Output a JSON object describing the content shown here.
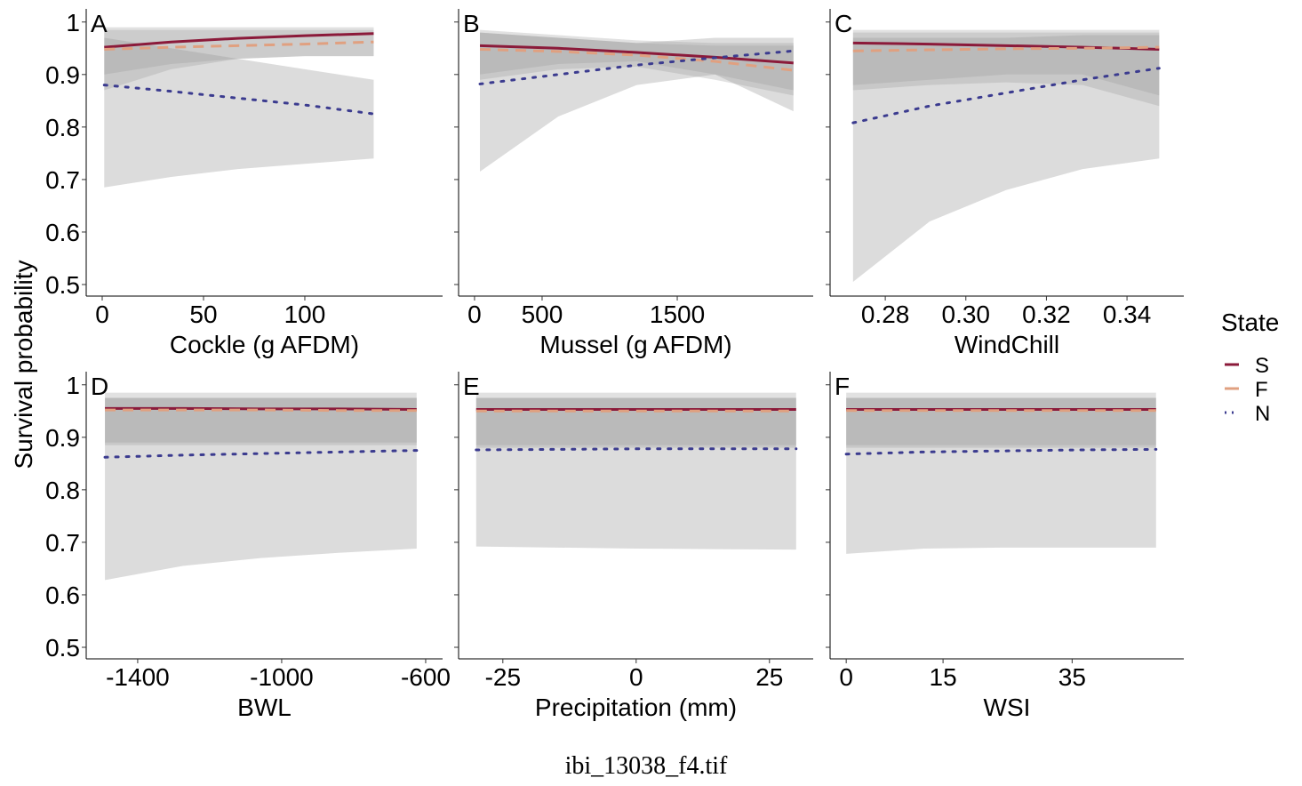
{
  "chart_data": [
    {
      "type": "line",
      "label": "A",
      "xlabel": "Cockle (g AFDM)",
      "x": [
        1,
        34,
        67,
        100,
        134
      ],
      "xlim": [
        -7.9,
        168
      ],
      "xticks": [
        0,
        50,
        100
      ],
      "ylim": [
        0.478,
        1.025
      ],
      "yticks": [
        0.5,
        0.6,
        0.7,
        0.8,
        0.9,
        1.0
      ],
      "series": [
        {
          "name": "S",
          "color": "#8b1a3a",
          "values": [
            0.952,
            0.962,
            0.969,
            0.974,
            0.978
          ],
          "lower": [
            0.87,
            0.91,
            0.93,
            0.935,
            0.935
          ],
          "upper": [
            0.99,
            0.99,
            0.99,
            0.99,
            0.99
          ]
        },
        {
          "name": "F",
          "color": "#e0a080",
          "values": [
            0.948,
            0.952,
            0.955,
            0.958,
            0.962
          ],
          "lower": [
            0.9,
            0.92,
            0.93,
            0.935,
            0.935
          ],
          "upper": [
            0.985,
            0.985,
            0.985,
            0.985,
            0.985
          ]
        },
        {
          "name": "N",
          "color": "#3b3b8f",
          "values": [
            0.88,
            0.868,
            0.855,
            0.842,
            0.825
          ],
          "lower": [
            0.685,
            0.705,
            0.72,
            0.73,
            0.74
          ],
          "upper": [
            0.97,
            0.95,
            0.93,
            0.91,
            0.89
          ]
        }
      ]
    },
    {
      "type": "line",
      "label": "B",
      "xlabel": "Mussel (g AFDM)",
      "x": [
        40,
        620,
        1200,
        1780,
        2360
      ],
      "xlim": [
        -118,
        2506
      ],
      "xticks": [
        0,
        500,
        1500
      ],
      "ylim": [
        0.478,
        1.025
      ],
      "yticks": [
        0.5,
        0.6,
        0.7,
        0.8,
        0.9,
        1.0
      ],
      "series": [
        {
          "name": "S",
          "color": "#8b1a3a",
          "values": [
            0.955,
            0.95,
            0.942,
            0.933,
            0.922
          ],
          "lower": [
            0.9,
            0.92,
            0.925,
            0.9,
            0.87
          ],
          "upper": [
            0.985,
            0.975,
            0.965,
            0.96,
            0.96
          ]
        },
        {
          "name": "F",
          "color": "#e0a080",
          "values": [
            0.948,
            0.944,
            0.937,
            0.925,
            0.908
          ],
          "lower": [
            0.89,
            0.91,
            0.915,
            0.89,
            0.86
          ],
          "upper": [
            0.98,
            0.97,
            0.96,
            0.955,
            0.955
          ]
        },
        {
          "name": "N",
          "color": "#3b3b8f",
          "values": [
            0.882,
            0.9,
            0.918,
            0.932,
            0.945
          ],
          "lower": [
            0.715,
            0.82,
            0.88,
            0.9,
            0.83
          ],
          "upper": [
            0.98,
            0.97,
            0.96,
            0.97,
            0.97
          ]
        }
      ]
    },
    {
      "type": "line",
      "label": "C",
      "xlabel": "WindChill",
      "x": [
        0.272,
        0.291,
        0.31,
        0.329,
        0.348
      ],
      "xlim": [
        0.2663,
        0.3541
      ],
      "xticks": [
        {
          "value": 0.28,
          "label": "0.28"
        },
        {
          "value": 0.3,
          "label": "0.30"
        },
        {
          "value": 0.32,
          "label": "0.32"
        },
        {
          "value": 0.34,
          "label": "0.34"
        }
      ],
      "ylim": [
        0.478,
        1.025
      ],
      "yticks": [
        0.5,
        0.6,
        0.7,
        0.8,
        0.9,
        1.0
      ],
      "series": [
        {
          "name": "S",
          "color": "#8b1a3a",
          "values": [
            0.96,
            0.958,
            0.955,
            0.952,
            0.948
          ],
          "lower": [
            0.87,
            0.88,
            0.885,
            0.88,
            0.84
          ],
          "upper": [
            0.985,
            0.985,
            0.985,
            0.985,
            0.985
          ]
        },
        {
          "name": "F",
          "color": "#e0a080",
          "values": [
            0.945,
            0.947,
            0.949,
            0.95,
            0.952
          ],
          "lower": [
            0.88,
            0.89,
            0.9,
            0.9,
            0.86
          ],
          "upper": [
            0.98,
            0.98,
            0.98,
            0.98,
            0.98
          ]
        },
        {
          "name": "N",
          "color": "#3b3b8f",
          "values": [
            0.808,
            0.84,
            0.865,
            0.89,
            0.912
          ],
          "lower": [
            0.505,
            0.62,
            0.68,
            0.72,
            0.74
          ],
          "upper": [
            0.97,
            0.97,
            0.97,
            0.975,
            0.975
          ]
        }
      ]
    },
    {
      "type": "line",
      "label": "D",
      "xlabel": "BWL",
      "x": [
        -1491,
        -1275,
        -1058,
        -842,
        -625
      ],
      "xlim": [
        -1543,
        -553
      ],
      "xticks": [
        -1400,
        -1000,
        -600
      ],
      "ylim": [
        0.478,
        1.025
      ],
      "yticks": [
        0.5,
        0.6,
        0.7,
        0.8,
        0.9,
        1.0
      ],
      "series": [
        {
          "name": "S",
          "color": "#8b1a3a",
          "values": [
            0.955,
            0.955,
            0.954,
            0.954,
            0.953
          ],
          "lower": [
            0.89,
            0.89,
            0.89,
            0.89,
            0.89
          ],
          "upper": [
            0.985,
            0.985,
            0.985,
            0.985,
            0.985
          ]
        },
        {
          "name": "F",
          "color": "#e0a080",
          "values": [
            0.952,
            0.952,
            0.952,
            0.951,
            0.951
          ],
          "lower": [
            0.885,
            0.885,
            0.885,
            0.885,
            0.885
          ],
          "upper": [
            0.975,
            0.975,
            0.975,
            0.975,
            0.975
          ]
        },
        {
          "name": "N",
          "color": "#3b3b8f",
          "values": [
            0.862,
            0.866,
            0.869,
            0.872,
            0.875
          ],
          "lower": [
            0.628,
            0.655,
            0.67,
            0.68,
            0.688
          ],
          "upper": [
            0.975,
            0.975,
            0.975,
            0.975,
            0.975
          ]
        }
      ]
    },
    {
      "type": "line",
      "label": "E",
      "xlabel": "Precipitation (mm)",
      "x": [
        -30,
        -15,
        0,
        15,
        30
      ],
      "xlim": [
        -33.3,
        33.2
      ],
      "xticks": [
        -25,
        0,
        25
      ],
      "ylim": [
        0.478,
        1.025
      ],
      "yticks": [
        0.5,
        0.6,
        0.7,
        0.8,
        0.9,
        1.0
      ],
      "series": [
        {
          "name": "S",
          "color": "#8b1a3a",
          "values": [
            0.953,
            0.953,
            0.953,
            0.953,
            0.953
          ],
          "lower": [
            0.885,
            0.885,
            0.885,
            0.885,
            0.885
          ],
          "upper": [
            0.985,
            0.985,
            0.985,
            0.985,
            0.985
          ]
        },
        {
          "name": "F",
          "color": "#e0a080",
          "values": [
            0.95,
            0.95,
            0.95,
            0.95,
            0.95
          ],
          "lower": [
            0.88,
            0.88,
            0.88,
            0.88,
            0.88
          ],
          "upper": [
            0.975,
            0.975,
            0.975,
            0.975,
            0.975
          ]
        },
        {
          "name": "N",
          "color": "#3b3b8f",
          "values": [
            0.876,
            0.877,
            0.878,
            0.878,
            0.878
          ],
          "lower": [
            0.692,
            0.69,
            0.688,
            0.687,
            0.686
          ],
          "upper": [
            0.975,
            0.975,
            0.975,
            0.975,
            0.975
          ]
        }
      ]
    },
    {
      "type": "line",
      "label": "F",
      "xlabel": "WSI",
      "x": [
        0,
        12,
        24,
        36,
        48
      ],
      "xlim": [
        -2.5,
        52.3
      ],
      "xticks": [
        0,
        15,
        35
      ],
      "ylim": [
        0.478,
        1.025
      ],
      "yticks": [
        0.5,
        0.6,
        0.7,
        0.8,
        0.9,
        1.0
      ],
      "series": [
        {
          "name": "S",
          "color": "#8b1a3a",
          "values": [
            0.953,
            0.953,
            0.953,
            0.953,
            0.953
          ],
          "lower": [
            0.885,
            0.885,
            0.885,
            0.885,
            0.885
          ],
          "upper": [
            0.985,
            0.985,
            0.985,
            0.985,
            0.985
          ]
        },
        {
          "name": "F",
          "color": "#e0a080",
          "values": [
            0.951,
            0.951,
            0.951,
            0.951,
            0.951
          ],
          "lower": [
            0.88,
            0.88,
            0.88,
            0.88,
            0.88
          ],
          "upper": [
            0.975,
            0.975,
            0.975,
            0.975,
            0.975
          ]
        },
        {
          "name": "N",
          "color": "#3b3b8f",
          "values": [
            0.868,
            0.872,
            0.874,
            0.876,
            0.877
          ],
          "lower": [
            0.678,
            0.688,
            0.69,
            0.69,
            0.69
          ],
          "upper": [
            0.975,
            0.975,
            0.975,
            0.975,
            0.975
          ]
        }
      ]
    }
  ],
  "ylabel": "Survival probability",
  "legend_title": "State",
  "caption": "ibi_13038_f4.tif"
}
